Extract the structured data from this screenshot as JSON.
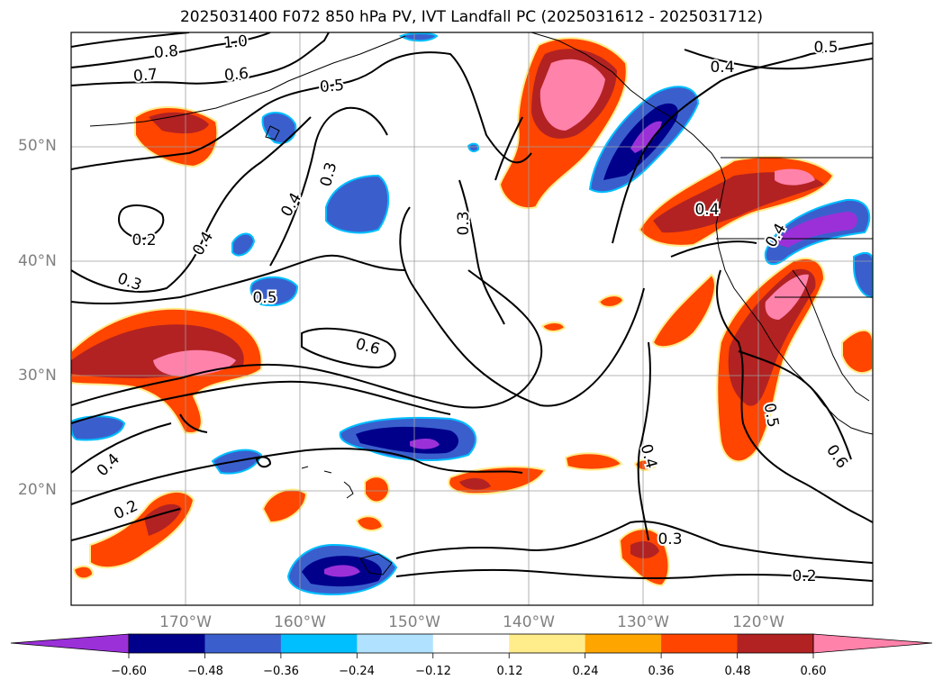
{
  "title": "2025031400 F072 850 hPa PV, IVT Landfall PC (2025031612 - 2025031712)",
  "lat_labels": [
    "50°N",
    "40°N",
    "30°N",
    "20°N"
  ],
  "lon_labels": [
    "170°W",
    "160°W",
    "150°W",
    "140°W",
    "130°W",
    "120°W"
  ],
  "contour_labels": [
    "1.0",
    "0.8",
    "0.7",
    "0.6",
    "0.5",
    "0.5",
    "0.4",
    "0.4",
    "0.3",
    "0.3",
    "0.2",
    "0.3",
    "0.4",
    "0.4",
    "0.5",
    "0.6",
    "0.4",
    "0.2",
    "0.4",
    "0.3",
    "0.2",
    "0.5",
    "0.6",
    "0.4"
  ],
  "colorbar": {
    "ticks": [
      "−0.60",
      "−0.48",
      "−0.36",
      "−0.24",
      "−0.12",
      "0.12",
      "0.24",
      "0.36",
      "0.48",
      "0.60"
    ],
    "colors": [
      "#9b30d9",
      "#00008b",
      "#3a5fcd",
      "#00bfff",
      "#b0e2ff",
      "#ffffff",
      "#ffec8b",
      "#ffa500",
      "#ff4500",
      "#b22222",
      "#ff82ab"
    ]
  }
}
